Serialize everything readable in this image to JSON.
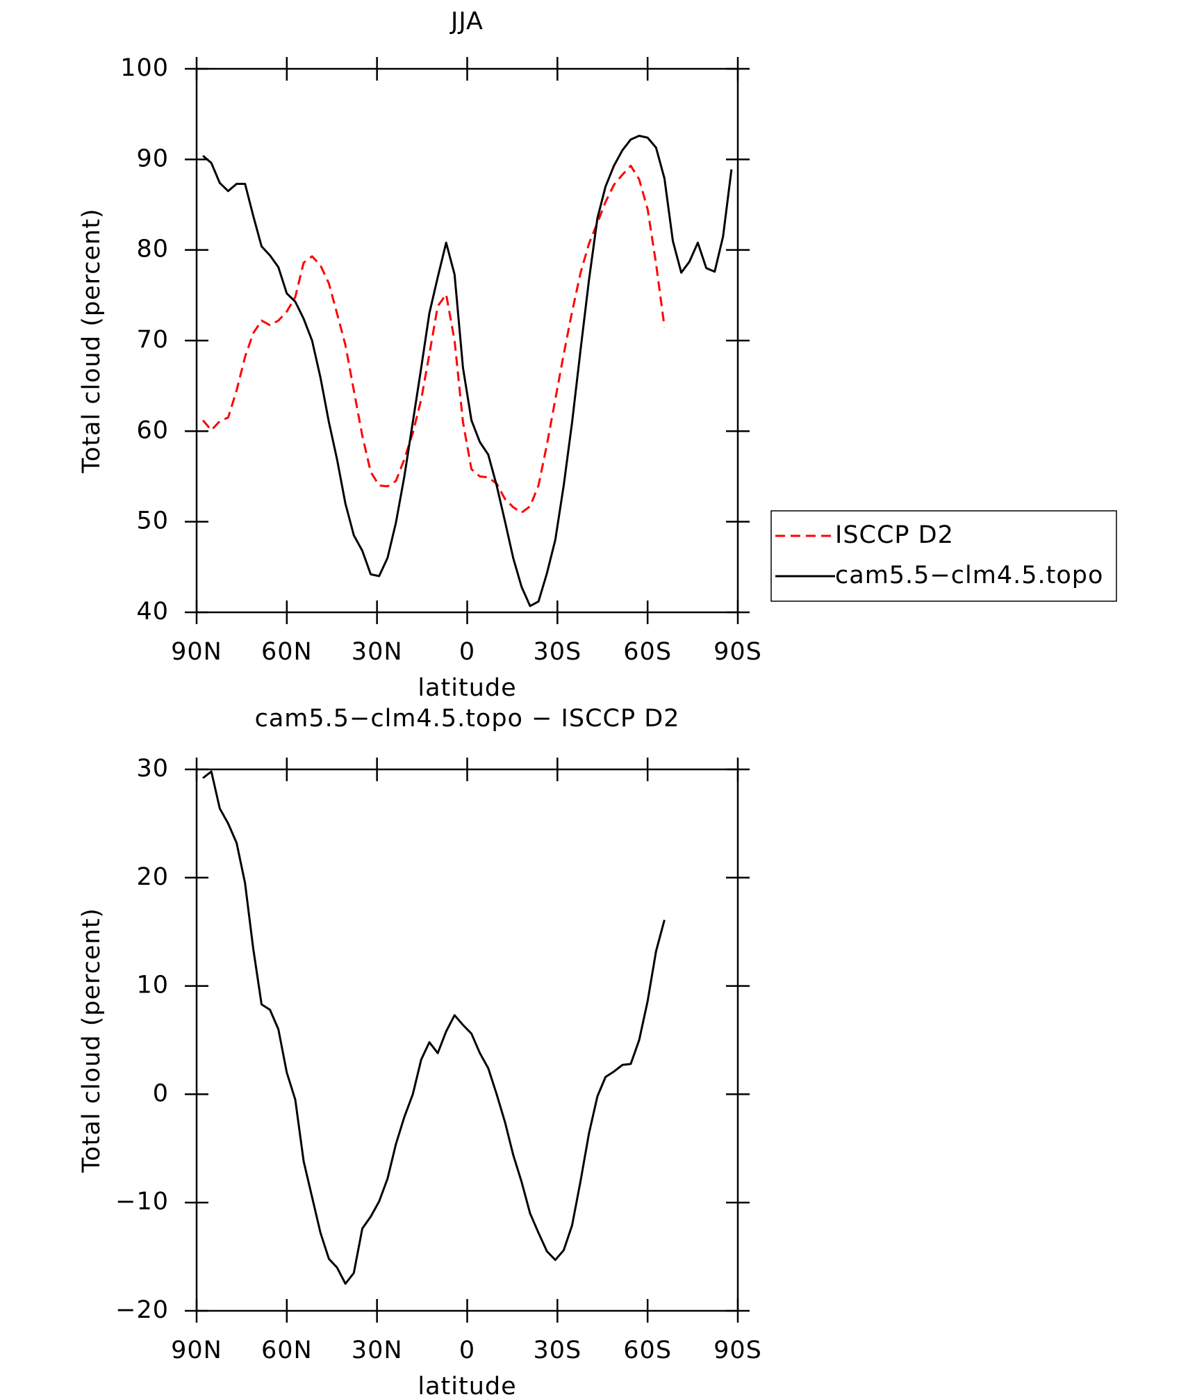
{
  "chart_data": [
    {
      "type": "line",
      "title": "JJA",
      "xlabel": "latitude",
      "ylabel": "Total cloud (percent)",
      "x": [
        87.9,
        85.1,
        82.3,
        79.5,
        76.7,
        73.9,
        71.2,
        68.4,
        65.6,
        62.8,
        60.0,
        57.2,
        54.4,
        51.6,
        48.8,
        46.0,
        43.3,
        40.5,
        37.7,
        34.9,
        32.1,
        29.3,
        26.5,
        23.7,
        20.9,
        18.1,
        15.3,
        12.6,
        9.8,
        7.0,
        4.2,
        1.4,
        -1.4,
        -4.2,
        -7.0,
        -9.8,
        -12.6,
        -15.3,
        -18.1,
        -20.9,
        -23.7,
        -26.5,
        -29.3,
        -32.1,
        -34.9,
        -37.7,
        -40.5,
        -43.3,
        -46.0,
        -48.8,
        -51.6,
        -54.4,
        -57.2,
        -60.0,
        -62.8,
        -65.6,
        -68.4,
        -71.2,
        -73.9,
        -76.7,
        -79.5,
        -82.3,
        -85.1,
        -87.9
      ],
      "series": [
        {
          "name": "ISCCP D2",
          "color": "#ff0000",
          "dashed": true,
          "values": [
            61.2,
            60.1,
            61.1,
            61.5,
            64.5,
            68.2,
            70.8,
            72.2,
            71.7,
            72.2,
            73.2,
            74.8,
            78.6,
            79.3,
            78.3,
            76.3,
            73,
            69.5,
            64.5,
            59.5,
            55.5,
            54,
            53.9,
            54.5,
            56.9,
            59.8,
            63.5,
            68.5,
            73.8,
            75.1,
            70,
            61,
            55.8,
            55,
            54.9,
            54.2,
            52.5,
            51.6,
            51,
            51.7,
            54,
            58.5,
            63.5,
            68.5,
            73.2,
            77.5,
            80.7,
            83,
            85.3,
            87.2,
            88.3,
            89.3,
            87.8,
            84.5,
            78.5,
            71.5,
            null,
            null,
            null,
            null,
            null,
            null,
            null,
            null
          ]
        },
        {
          "name": "cam5.5−clm4.5.topo",
          "color": "#000000",
          "dashed": false,
          "values": [
            90.4,
            89.6,
            87.4,
            86.5,
            87.3,
            87.3,
            83.8,
            80.4,
            79.4,
            78.1,
            75.2,
            74.3,
            72.4,
            70,
            65.9,
            61,
            56.9,
            52,
            48.5,
            46.8,
            44.2,
            44,
            46,
            49.9,
            55,
            61,
            67,
            73,
            77,
            80.8,
            77.3,
            67,
            61.2,
            58.8,
            57.4,
            54,
            50,
            46,
            42.8,
            40.7,
            41.2,
            44.3,
            48,
            54,
            61,
            69,
            76.7,
            83.5,
            87,
            89.3,
            91,
            92.2,
            92.6,
            92.4,
            91.3,
            87.9,
            81,
            77.5,
            78.7,
            80.8,
            78,
            77.6,
            81.5,
            88.9
          ]
        }
      ],
      "xlim": [
        90,
        -90
      ],
      "xticks": [
        {
          "value": 90,
          "label": "90N"
        },
        {
          "value": 60,
          "label": "60N"
        },
        {
          "value": 30,
          "label": "30N"
        },
        0,
        {
          "value": -30,
          "label": "30S"
        },
        {
          "value": -60,
          "label": "60S"
        },
        {
          "value": -90,
          "label": "90S"
        }
      ],
      "ylim": [
        40,
        100
      ],
      "yticks": [
        40,
        50,
        60,
        70,
        80,
        90,
        100
      ],
      "legend": "right"
    },
    {
      "type": "line",
      "title": "cam5.5−clm4.5.topo − ISCCP D2",
      "xlabel": "latitude",
      "ylabel": "Total cloud (percent)",
      "x": [
        87.9,
        85.1,
        82.3,
        79.5,
        76.7,
        73.9,
        71.2,
        68.4,
        65.6,
        62.8,
        60.0,
        57.2,
        54.4,
        51.6,
        48.8,
        46.0,
        43.3,
        40.5,
        37.7,
        34.9,
        32.1,
        29.3,
        26.5,
        23.7,
        20.9,
        18.1,
        15.3,
        12.6,
        9.8,
        7.0,
        4.2,
        1.4,
        -1.4,
        -4.2,
        -7.0,
        -9.8,
        -12.6,
        -15.3,
        -18.1,
        -20.9,
        -23.7,
        -26.5,
        -29.3,
        -32.1,
        -34.9,
        -37.7,
        -40.5,
        -43.3,
        -46.0,
        -48.8,
        -51.6,
        -54.4,
        -57.2,
        -60.0,
        -62.8,
        -65.6
      ],
      "series": [
        {
          "color": "#000000",
          "dashed": false,
          "values": [
            29.2,
            29.8,
            26.4,
            25,
            23.2,
            19.5,
            13.5,
            8.3,
            7.8,
            6,
            2,
            -0.5,
            -6.2,
            -9.5,
            -12.8,
            -15.2,
            -16,
            -17.5,
            -16.5,
            -12.4,
            -11.3,
            -9.9,
            -7.8,
            -4.6,
            -2.1,
            0,
            3.2,
            4.8,
            3.8,
            5.8,
            7.3,
            6.4,
            5.6,
            3.8,
            2.4,
            0,
            -2.6,
            -5.6,
            -8.1,
            -11,
            -12.8,
            -14.5,
            -15.3,
            -14.4,
            -12.1,
            -8,
            -3.6,
            -0.2,
            1.6,
            2.1,
            2.7,
            2.8,
            5,
            8.6,
            13.2,
            16.1
          ]
        }
      ],
      "xlim": [
        90,
        -90
      ],
      "xticks": [
        {
          "value": 90,
          "label": "90N"
        },
        {
          "value": 60,
          "label": "60N"
        },
        {
          "value": 30,
          "label": "30N"
        },
        0,
        {
          "value": -30,
          "label": "30S"
        },
        {
          "value": -60,
          "label": "60S"
        },
        {
          "value": -90,
          "label": "90S"
        }
      ],
      "ylim": [
        -20,
        30
      ],
      "yticks": [
        {
          "value": -20,
          "label": "−20"
        },
        {
          "value": -10,
          "label": "−10"
        },
        0,
        10,
        20,
        30
      ]
    }
  ]
}
